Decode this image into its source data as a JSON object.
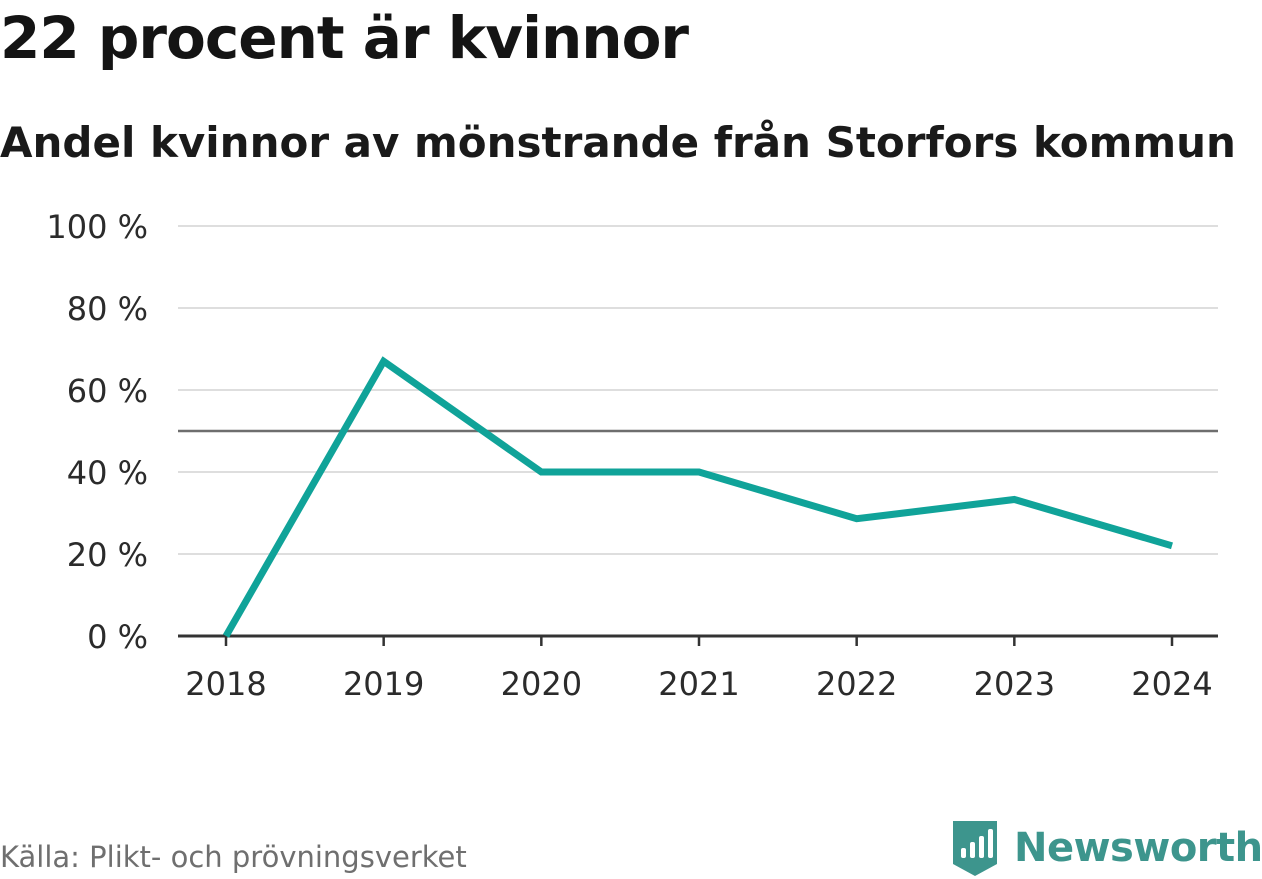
{
  "title": "22 procent är kvinnor",
  "subtitle": "Andel kvinnor av mönstrande från Storfors kommun",
  "source": "Källa: Plikt- och prövningsverket",
  "brand": {
    "name": "Newsworthy",
    "icon": "newsworthy-logo-icon",
    "color": "#3d958d"
  },
  "chart_data": {
    "type": "line",
    "x": [
      "2018",
      "2019",
      "2020",
      "2021",
      "2022",
      "2023",
      "2024"
    ],
    "series": [
      {
        "values": [
          0,
          67,
          40,
          40,
          28.6,
          33.3,
          22
        ],
        "color": "#10a399"
      }
    ],
    "yticks": [
      0,
      20,
      40,
      60,
      80,
      100
    ],
    "ytick_labels": [
      "0 %",
      "20 %",
      "40 %",
      "60 %",
      "80 %",
      "100 %"
    ],
    "ylim": [
      0,
      100
    ],
    "reference_line": 50,
    "grid": true,
    "xlabel": "",
    "ylabel": ""
  }
}
